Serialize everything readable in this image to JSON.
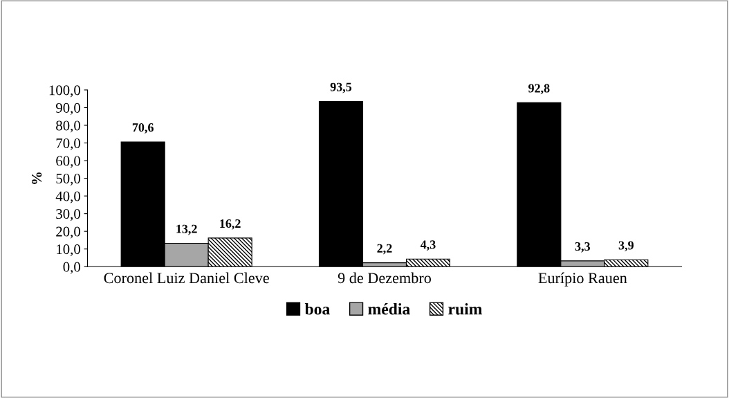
{
  "chart_data": {
    "type": "bar",
    "ylabel": "%",
    "categories": [
      "Coronel Luiz Daniel Cleve",
      "9 de Dezembro",
      "Eurípio Rauen"
    ],
    "series": [
      {
        "name": "boa",
        "color": "#000000",
        "values": [
          70.6,
          93.5,
          92.8
        ],
        "value_labels": [
          "70,6",
          "93,5",
          "92,8"
        ]
      },
      {
        "name": "média",
        "color": "#a6a6a6",
        "values": [
          13.2,
          2.2,
          3.3
        ],
        "value_labels": [
          "13,2",
          "2,2",
          "3,3"
        ]
      },
      {
        "name": "ruim",
        "color": "#000000",
        "values": [
          16.2,
          4.3,
          3.9
        ],
        "value_labels": [
          "16,2",
          "4,3",
          "3,9"
        ]
      }
    ],
    "ylim": [
      0,
      100
    ],
    "yticks": [
      {
        "value": 0,
        "label": "0,0"
      },
      {
        "value": 10,
        "label": "10,0"
      },
      {
        "value": 20,
        "label": "20,0"
      },
      {
        "value": 30,
        "label": "30,0"
      },
      {
        "value": 40,
        "label": "40,0"
      },
      {
        "value": 50,
        "label": "50,0"
      },
      {
        "value": 60,
        "label": "60,0"
      },
      {
        "value": 70,
        "label": "70,0"
      },
      {
        "value": 80,
        "label": "80,0"
      },
      {
        "value": 90,
        "label": "90,0"
      },
      {
        "value": 100,
        "label": "100,0"
      }
    ],
    "grid": false,
    "legend": "bottom"
  }
}
